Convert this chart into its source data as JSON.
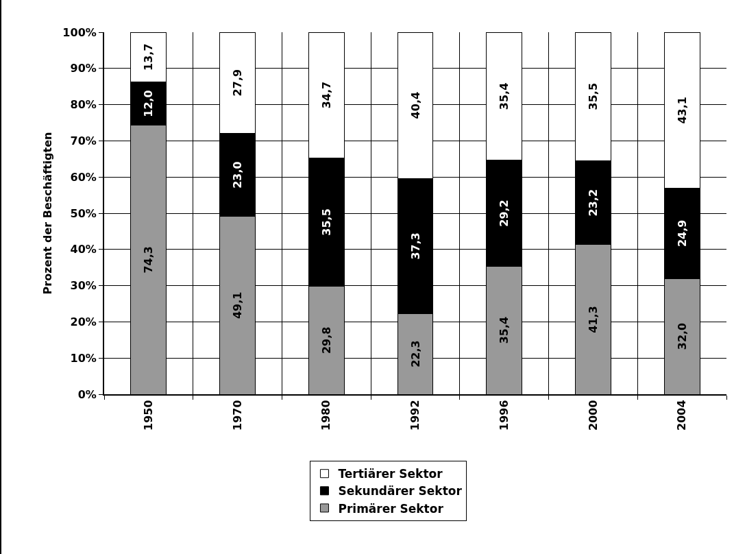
{
  "chart_data": {
    "type": "bar",
    "stacked": true,
    "ylabel": "Prozent der Beschäftigten",
    "categories": [
      "1950",
      "1970",
      "1980",
      "1992",
      "1996",
      "2000",
      "2004"
    ],
    "series": [
      {
        "name": "Primärer Sektor",
        "color": "#999999",
        "values": [
          74.3,
          49.1,
          29.8,
          22.3,
          35.4,
          41.3,
          32.0
        ],
        "value_labels": [
          "74,3",
          "49,1",
          "29,8",
          "22,3",
          "35,4",
          "41,3",
          "32,0"
        ]
      },
      {
        "name": "Sekundärer Sektor",
        "color": "#000000",
        "values": [
          12.0,
          23.0,
          35.5,
          37.3,
          29.2,
          23.2,
          24.9
        ],
        "value_labels": [
          "12,0",
          "23,0",
          "35,5",
          "37,3",
          "29,2",
          "23,2",
          "24,9"
        ]
      },
      {
        "name": "Tertiärer Sektor",
        "color": "#ffffff",
        "values": [
          13.7,
          27.9,
          34.7,
          40.4,
          35.4,
          35.5,
          43.1
        ],
        "value_labels": [
          "13,7",
          "27,9",
          "34,7",
          "40,4",
          "35,4",
          "35,5",
          "43,1"
        ]
      }
    ],
    "ylim": [
      0,
      100
    ],
    "yticks": [
      {
        "value": 0,
        "label": "0%"
      },
      {
        "value": 10,
        "label": "10%"
      },
      {
        "value": 20,
        "label": "20%"
      },
      {
        "value": 30,
        "label": "30%"
      },
      {
        "value": 40,
        "label": "40%"
      },
      {
        "value": 50,
        "label": "50%"
      },
      {
        "value": 60,
        "label": "60%"
      },
      {
        "value": 70,
        "label": "70%"
      },
      {
        "value": 80,
        "label": "80%"
      },
      {
        "value": 90,
        "label": "90%"
      },
      {
        "value": 100,
        "label": "100%"
      }
    ],
    "grid": true,
    "legend": "bottom"
  }
}
